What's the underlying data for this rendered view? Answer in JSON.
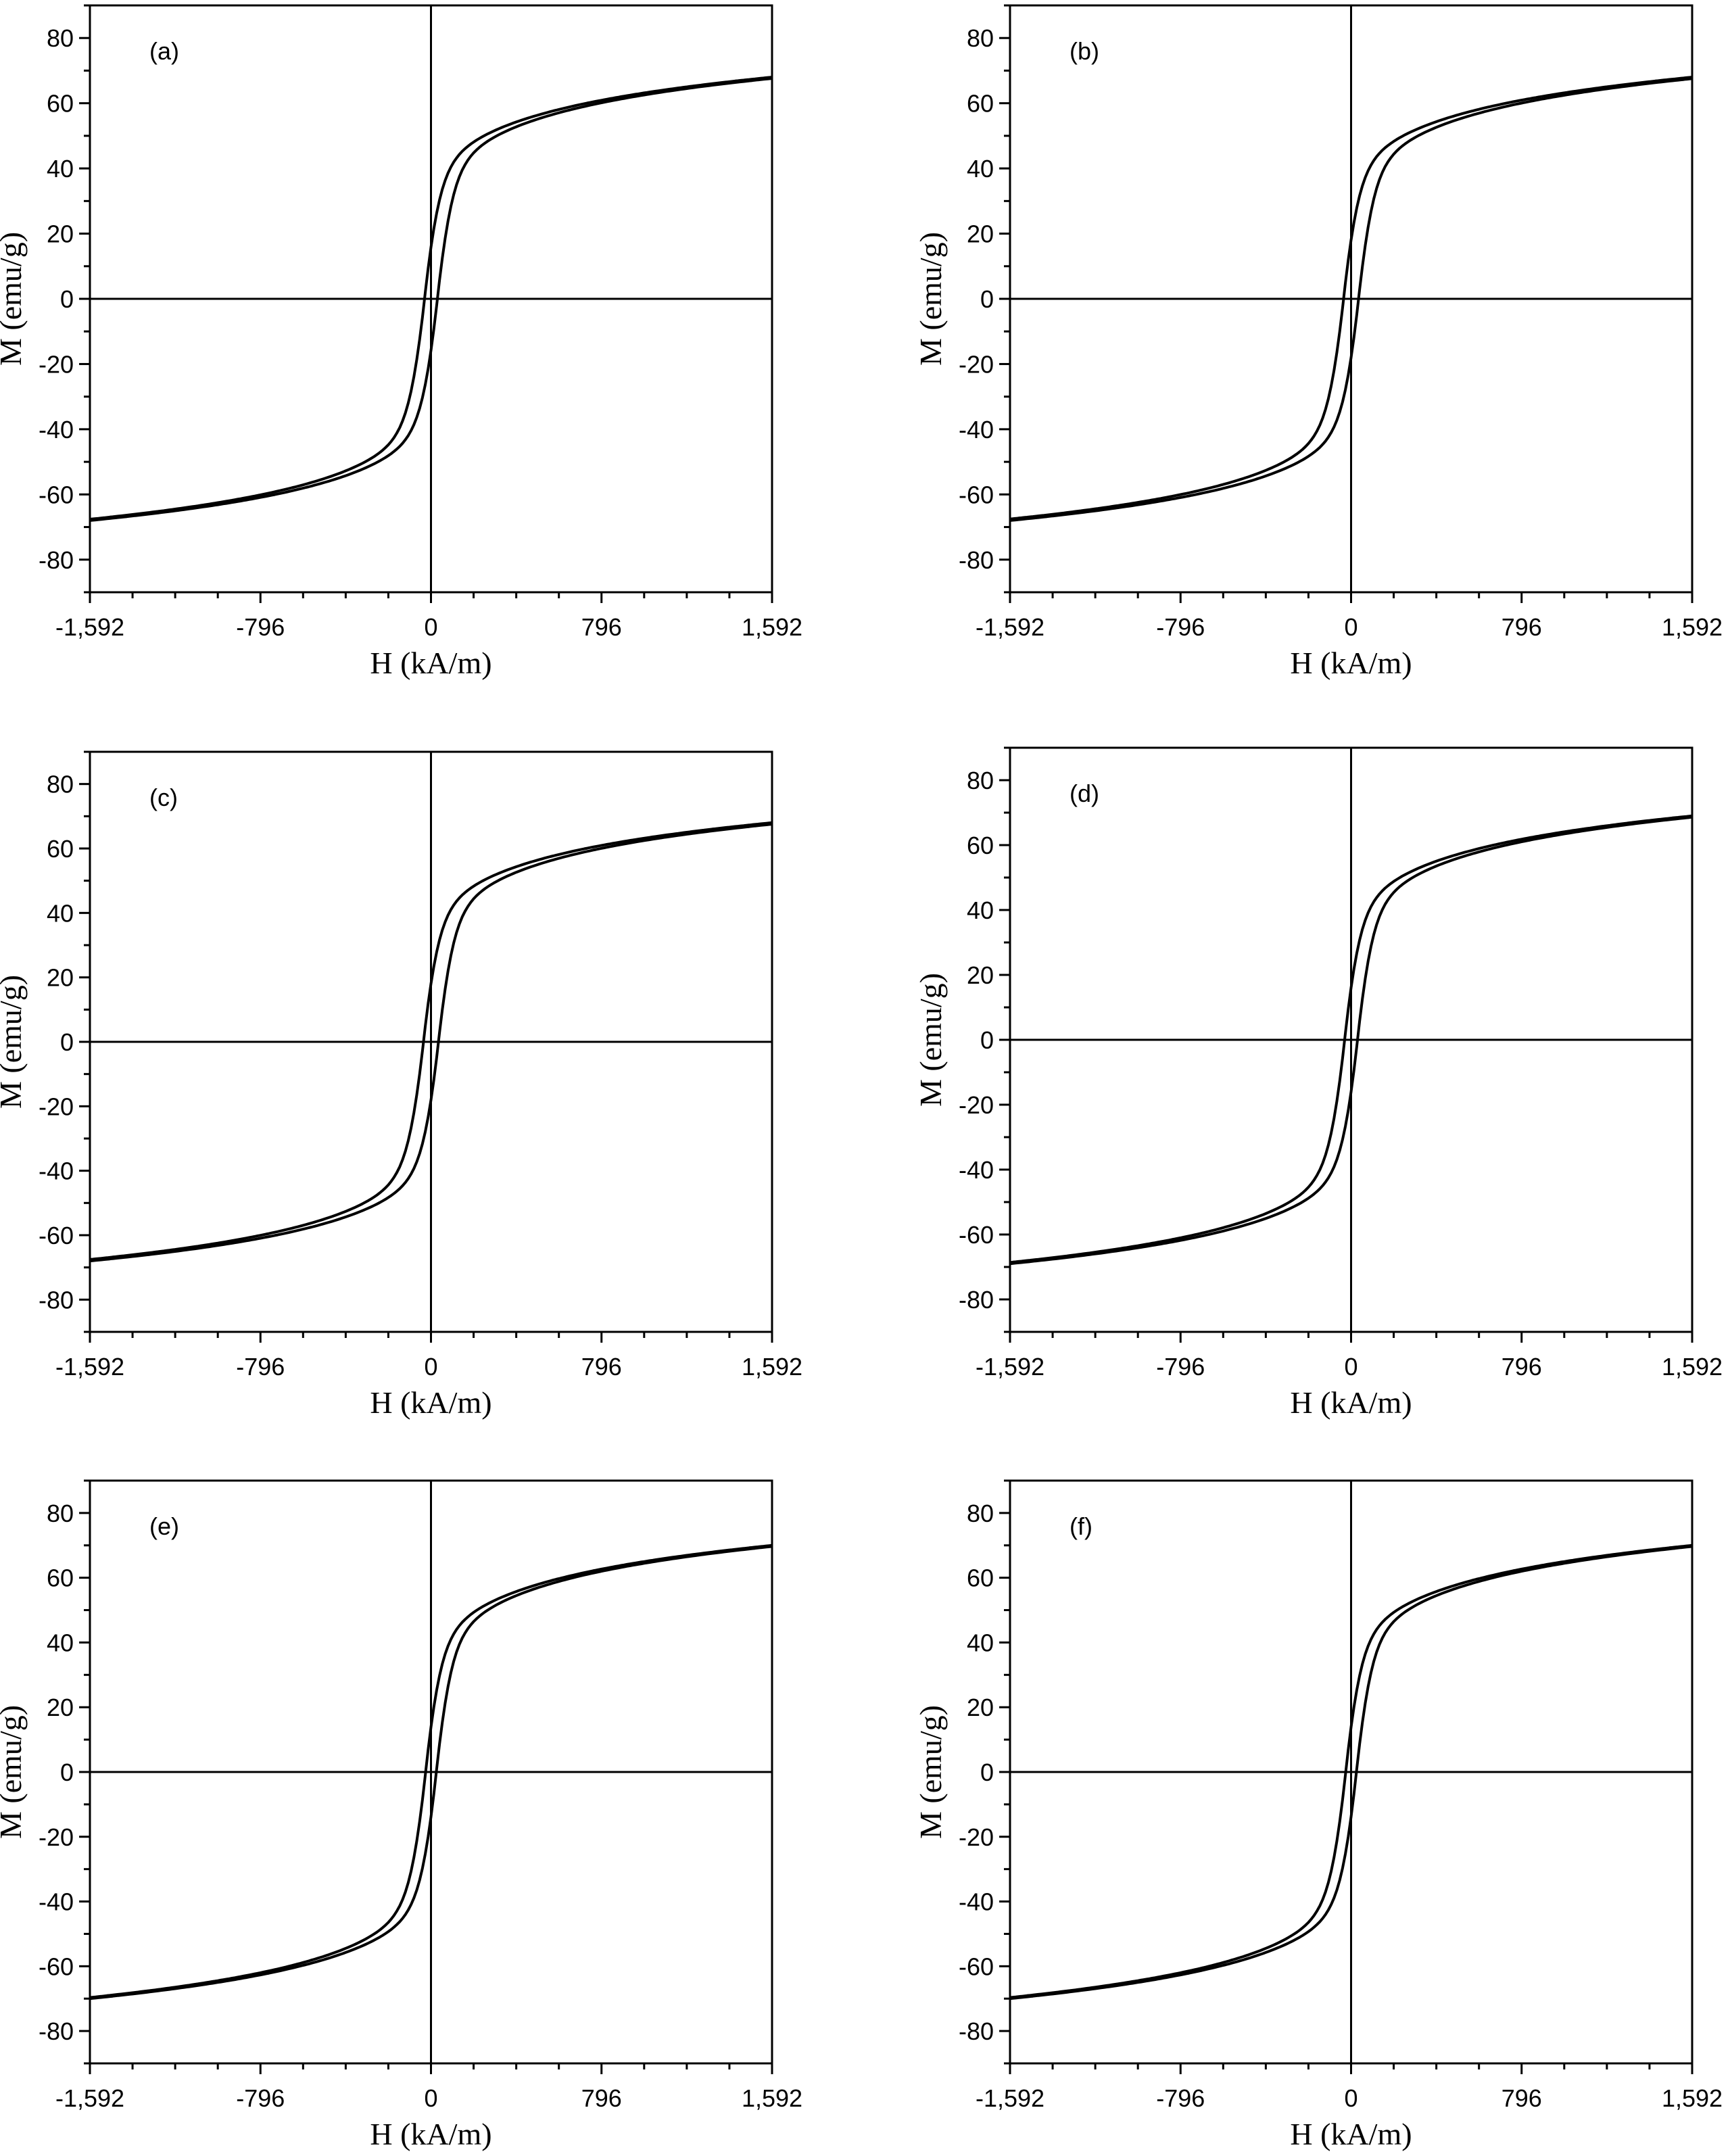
{
  "chart_data": [
    {
      "type": "line",
      "label": "(a)",
      "xlabel": "H (kA/m)",
      "ylabel": "M (emu/g)",
      "xlim": [
        -1592,
        1592
      ],
      "ylim": [
        -90,
        90
      ],
      "xticks": [
        -1592,
        -796,
        0,
        796,
        1592
      ],
      "xtick_labels": [
        "-1,592",
        "-796",
        "0",
        "796",
        "1,592"
      ],
      "yticks": [
        -80,
        -60,
        -40,
        -20,
        0,
        20,
        40,
        60,
        80
      ],
      "ytick_labels": [
        "-80",
        "-60",
        "-40",
        "-20",
        "0",
        "20",
        "40",
        "60",
        "80"
      ],
      "grid": false,
      "zero_lines": true,
      "hysteresis": {
        "saturation_at_max_field": 68,
        "coercivity": 30,
        "remanence": 18,
        "steepness": 80,
        "knee": 45
      },
      "series": [
        {
          "values_descending_branch": [
            [
              1592,
              68
            ],
            [
              796,
              57
            ],
            [
              300,
              45
            ],
            [
              100,
              34
            ],
            [
              0,
              18
            ],
            [
              -30,
              0
            ],
            [
              -100,
              -30
            ],
            [
              -300,
              -44
            ],
            [
              -796,
              -57
            ],
            [
              -1592,
              -68
            ]
          ]
        },
        {
          "values_ascending_branch": [
            [
              -1592,
              -68
            ],
            [
              -796,
              -57
            ],
            [
              -300,
              -45
            ],
            [
              -100,
              -34
            ],
            [
              0,
              -18
            ],
            [
              30,
              0
            ],
            [
              100,
              30
            ],
            [
              300,
              44
            ],
            [
              796,
              57
            ],
            [
              1592,
              68
            ]
          ]
        }
      ]
    },
    {
      "type": "line",
      "label": "(b)",
      "xlabel": "H (kA/m)",
      "ylabel": "M (emu/g)",
      "xlim": [
        -1592,
        1592
      ],
      "ylim": [
        -90,
        90
      ],
      "xticks": [
        -1592,
        -796,
        0,
        796,
        1592
      ],
      "xtick_labels": [
        "-1,592",
        "-796",
        "0",
        "796",
        "1,592"
      ],
      "yticks": [
        -80,
        -60,
        -40,
        -20,
        0,
        20,
        40,
        60,
        80
      ],
      "ytick_labels": [
        "-80",
        "-60",
        "-40",
        "-20",
        "0",
        "20",
        "40",
        "60",
        "80"
      ],
      "grid": false,
      "zero_lines": true,
      "hysteresis": {
        "saturation_at_max_field": 68,
        "coercivity": 35,
        "remanence": 20,
        "steepness": 80,
        "knee": 45
      },
      "series": [
        {
          "values_descending_branch": [
            [
              1592,
              68
            ],
            [
              796,
              57
            ],
            [
              300,
              45
            ],
            [
              100,
              35
            ],
            [
              0,
              20
            ],
            [
              -35,
              0
            ],
            [
              -100,
              -28
            ],
            [
              -300,
              -44
            ],
            [
              -796,
              -57
            ],
            [
              -1592,
              -68
            ]
          ]
        },
        {
          "values_ascending_branch": [
            [
              -1592,
              -68
            ],
            [
              -796,
              -57
            ],
            [
              -300,
              -45
            ],
            [
              -100,
              -35
            ],
            [
              0,
              -20
            ],
            [
              35,
              0
            ],
            [
              100,
              28
            ],
            [
              300,
              44
            ],
            [
              796,
              57
            ],
            [
              1592,
              68
            ]
          ]
        }
      ]
    },
    {
      "type": "line",
      "label": "(c)",
      "xlabel": "H (kA/m)",
      "ylabel": "M (emu/g)",
      "xlim": [
        -1592,
        1592
      ],
      "ylim": [
        -90,
        90
      ],
      "xticks": [
        -1592,
        -796,
        0,
        796,
        1592
      ],
      "xtick_labels": [
        "-1,592",
        "-796",
        "0",
        "796",
        "1,592"
      ],
      "yticks": [
        -80,
        -60,
        -40,
        -20,
        0,
        20,
        40,
        60,
        80
      ],
      "ytick_labels": [
        "-80",
        "-60",
        "-40",
        "-20",
        "0",
        "20",
        "40",
        "60",
        "80"
      ],
      "grid": false,
      "zero_lines": true,
      "hysteresis": {
        "saturation_at_max_field": 68,
        "coercivity": 35,
        "remanence": 22,
        "steepness": 80,
        "knee": 45
      },
      "series": [
        {
          "values_descending_branch": [
            [
              1592,
              68
            ],
            [
              796,
              58
            ],
            [
              300,
              46
            ],
            [
              100,
              36
            ],
            [
              0,
              22
            ],
            [
              -35,
              0
            ],
            [
              -100,
              -28
            ],
            [
              -300,
              -44
            ],
            [
              -796,
              -57
            ],
            [
              -1592,
              -68
            ]
          ]
        },
        {
          "values_ascending_branch": [
            [
              -1592,
              -68
            ],
            [
              -796,
              -58
            ],
            [
              -300,
              -46
            ],
            [
              -100,
              -36
            ],
            [
              0,
              -22
            ],
            [
              35,
              0
            ],
            [
              100,
              28
            ],
            [
              300,
              44
            ],
            [
              796,
              57
            ],
            [
              1592,
              68
            ]
          ]
        }
      ]
    },
    {
      "type": "line",
      "label": "(d)",
      "xlabel": "H (kA/m)",
      "ylabel": "M (emu/g)",
      "xlim": [
        -1592,
        1592
      ],
      "ylim": [
        -90,
        90
      ],
      "xticks": [
        -1592,
        -796,
        0,
        796,
        1592
      ],
      "xtick_labels": [
        "-1,592",
        "-796",
        "0",
        "796",
        "1,592"
      ],
      "yticks": [
        -80,
        -60,
        -40,
        -20,
        0,
        20,
        40,
        60,
        80
      ],
      "ytick_labels": [
        "-80",
        "-60",
        "-40",
        "-20",
        "0",
        "20",
        "40",
        "60",
        "80"
      ],
      "grid": false,
      "zero_lines": true,
      "hysteresis": {
        "saturation_at_max_field": 69,
        "coercivity": 30,
        "remanence": 22,
        "steepness": 80,
        "knee": 45
      },
      "series": [
        {
          "values_descending_branch": [
            [
              1592,
              69
            ],
            [
              796,
              58
            ],
            [
              300,
              46
            ],
            [
              100,
              36
            ],
            [
              0,
              22
            ],
            [
              -30,
              0
            ],
            [
              -100,
              -30
            ],
            [
              -300,
              -44
            ],
            [
              -796,
              -58
            ],
            [
              -1592,
              -69
            ]
          ]
        },
        {
          "values_ascending_branch": [
            [
              -1592,
              -69
            ],
            [
              -796,
              -58
            ],
            [
              -300,
              -46
            ],
            [
              -100,
              -36
            ],
            [
              0,
              -22
            ],
            [
              30,
              0
            ],
            [
              100,
              30
            ],
            [
              300,
              44
            ],
            [
              796,
              58
            ],
            [
              1592,
              69
            ]
          ]
        }
      ]
    },
    {
      "type": "line",
      "label": "(e)",
      "xlabel": "H (kA/m)",
      "ylabel": "M (emu/g)",
      "xlim": [
        -1592,
        1592
      ],
      "ylim": [
        -90,
        90
      ],
      "xticks": [
        -1592,
        -796,
        0,
        796,
        1592
      ],
      "xtick_labels": [
        "-1,592",
        "-796",
        "0",
        "796",
        "1,592"
      ],
      "yticks": [
        -80,
        -60,
        -40,
        -20,
        0,
        20,
        40,
        60,
        80
      ],
      "ytick_labels": [
        "-80",
        "-60",
        "-40",
        "-20",
        "0",
        "20",
        "40",
        "60",
        "80"
      ],
      "grid": false,
      "zero_lines": true,
      "hysteresis": {
        "saturation_at_max_field": 70,
        "coercivity": 25,
        "remanence": 20,
        "steepness": 80,
        "knee": 45
      },
      "series": [
        {
          "values_descending_branch": [
            [
              1592,
              70
            ],
            [
              796,
              59
            ],
            [
              300,
              47
            ],
            [
              100,
              36
            ],
            [
              0,
              20
            ],
            [
              -25,
              0
            ],
            [
              -100,
              -30
            ],
            [
              -300,
              -45
            ],
            [
              -796,
              -59
            ],
            [
              -1592,
              -70
            ]
          ]
        },
        {
          "values_ascending_branch": [
            [
              -1592,
              -70
            ],
            [
              -796,
              -59
            ],
            [
              -300,
              -47
            ],
            [
              -100,
              -36
            ],
            [
              0,
              -20
            ],
            [
              25,
              0
            ],
            [
              100,
              30
            ],
            [
              300,
              45
            ],
            [
              796,
              59
            ],
            [
              1592,
              70
            ]
          ]
        }
      ]
    },
    {
      "type": "line",
      "label": "(f)",
      "xlabel": "H (kA/m)",
      "ylabel": "M (emu/g)",
      "xlim": [
        -1592,
        1592
      ],
      "ylim": [
        -90,
        90
      ],
      "xticks": [
        -1592,
        -796,
        0,
        796,
        1592
      ],
      "xtick_labels": [
        "-1,592",
        "-796",
        "0",
        "796",
        "1,592"
      ],
      "yticks": [
        -80,
        -60,
        -40,
        -20,
        0,
        20,
        40,
        60,
        80
      ],
      "ytick_labels": [
        "-80",
        "-60",
        "-40",
        "-20",
        "0",
        "20",
        "40",
        "60",
        "80"
      ],
      "grid": false,
      "zero_lines": true,
      "hysteresis": {
        "saturation_at_max_field": 70,
        "coercivity": 25,
        "remanence": 18,
        "steepness": 80,
        "knee": 45
      },
      "series": [
        {
          "values_descending_branch": [
            [
              1592,
              70
            ],
            [
              796,
              59
            ],
            [
              300,
              47
            ],
            [
              100,
              35
            ],
            [
              0,
              18
            ],
            [
              -25,
              0
            ],
            [
              -100,
              -30
            ],
            [
              -300,
              -45
            ],
            [
              -796,
              -59
            ],
            [
              -1592,
              -70
            ]
          ]
        },
        {
          "values_ascending_branch": [
            [
              -1592,
              -70
            ],
            [
              -796,
              -59
            ],
            [
              -300,
              -47
            ],
            [
              -100,
              -35
            ],
            [
              0,
              -18
            ],
            [
              25,
              0
            ],
            [
              100,
              30
            ],
            [
              300,
              45
            ],
            [
              796,
              59
            ],
            [
              1592,
              70
            ]
          ]
        }
      ]
    }
  ]
}
